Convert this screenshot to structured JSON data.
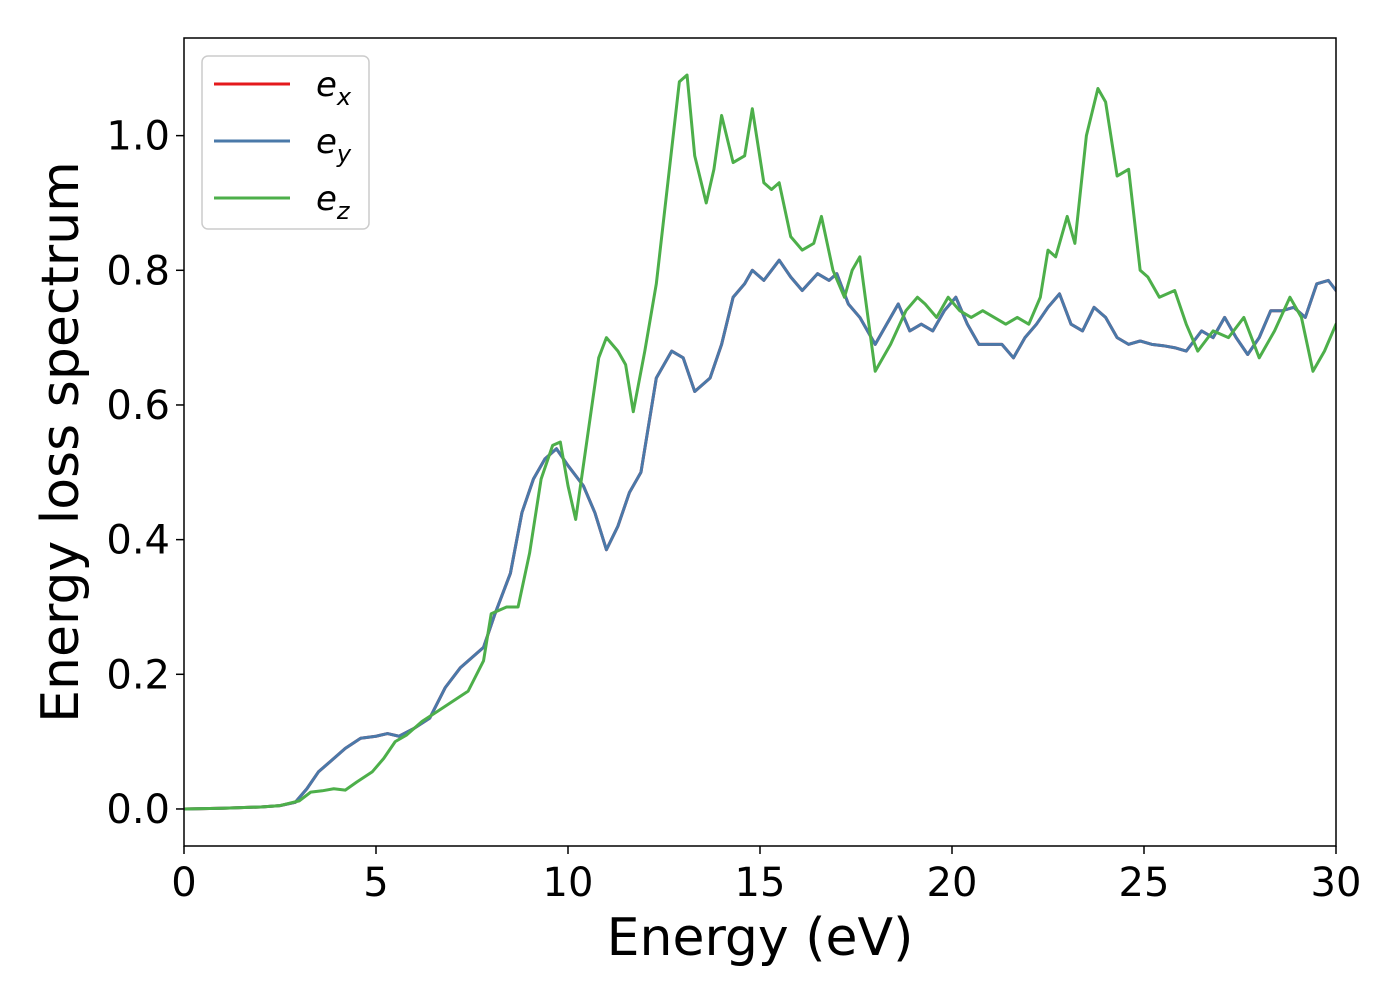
{
  "chart_data": {
    "type": "line",
    "title": "",
    "xlabel": "Energy (eV)",
    "ylabel": "Energy loss spectrum",
    "xlim": [
      0,
      30
    ],
    "ylim": [
      -0.055,
      1.145
    ],
    "xticks": [
      0,
      5,
      10,
      15,
      20,
      25,
      30
    ],
    "xtick_labels": [
      "0",
      "5",
      "10",
      "15",
      "20",
      "25",
      "30"
    ],
    "yticks": [
      0.0,
      0.2,
      0.4,
      0.6,
      0.8,
      1.0
    ],
    "ytick_labels": [
      "0.0",
      "0.2",
      "0.4",
      "0.6",
      "0.8",
      "1.0"
    ],
    "grid": false,
    "legend_position": "top-left",
    "series": [
      {
        "name": "e_x",
        "label_base": "e",
        "label_sub": "x",
        "color": "#e41a1c",
        "x": [
          0,
          1,
          2,
          2.5,
          2.9,
          3.2,
          3.5,
          3.8,
          4.2,
          4.6,
          5.0,
          5.3,
          5.6,
          6.0,
          6.4,
          6.8,
          7.2,
          7.5,
          7.8,
          8.1,
          8.5,
          8.8,
          9.1,
          9.4,
          9.7,
          10.0,
          10.4,
          10.7,
          11.0,
          11.3,
          11.6,
          11.9,
          12.3,
          12.7,
          13.0,
          13.3,
          13.7,
          14.0,
          14.3,
          14.6,
          14.8,
          15.1,
          15.3,
          15.5,
          15.8,
          16.1,
          16.5,
          16.8,
          17.0,
          17.3,
          17.6,
          18.0,
          18.3,
          18.6,
          18.9,
          19.2,
          19.5,
          19.8,
          20.1,
          20.4,
          20.7,
          21.0,
          21.3,
          21.6,
          21.9,
          22.2,
          22.5,
          22.8,
          23.1,
          23.4,
          23.7,
          24.0,
          24.3,
          24.6,
          24.9,
          25.2,
          25.5,
          25.8,
          26.1,
          26.5,
          26.8,
          27.1,
          27.4,
          27.7,
          28.0,
          28.3,
          28.6,
          28.9,
          29.2,
          29.5,
          29.8,
          30.0
        ],
        "y": [
          0,
          0.001,
          0.003,
          0.005,
          0.01,
          0.03,
          0.055,
          0.07,
          0.09,
          0.105,
          0.108,
          0.112,
          0.108,
          0.12,
          0.135,
          0.18,
          0.21,
          0.225,
          0.24,
          0.29,
          0.35,
          0.44,
          0.49,
          0.52,
          0.535,
          0.51,
          0.48,
          0.44,
          0.385,
          0.42,
          0.47,
          0.5,
          0.64,
          0.68,
          0.67,
          0.62,
          0.64,
          0.69,
          0.76,
          0.78,
          0.8,
          0.785,
          0.8,
          0.815,
          0.79,
          0.77,
          0.795,
          0.785,
          0.795,
          0.75,
          0.73,
          0.69,
          0.72,
          0.75,
          0.71,
          0.72,
          0.71,
          0.74,
          0.76,
          0.72,
          0.69,
          0.69,
          0.69,
          0.67,
          0.7,
          0.72,
          0.745,
          0.765,
          0.72,
          0.71,
          0.745,
          0.73,
          0.7,
          0.69,
          0.695,
          0.69,
          0.688,
          0.685,
          0.68,
          0.71,
          0.7,
          0.73,
          0.7,
          0.675,
          0.7,
          0.74,
          0.74,
          0.745,
          0.73,
          0.78,
          0.785,
          0.77
        ]
      },
      {
        "name": "e_y",
        "label_base": "e",
        "label_sub": "y",
        "color": "#4a79a9",
        "x": [
          0,
          1,
          2,
          2.5,
          2.9,
          3.2,
          3.5,
          3.8,
          4.2,
          4.6,
          5.0,
          5.3,
          5.6,
          6.0,
          6.4,
          6.8,
          7.2,
          7.5,
          7.8,
          8.1,
          8.5,
          8.8,
          9.1,
          9.4,
          9.7,
          10.0,
          10.4,
          10.7,
          11.0,
          11.3,
          11.6,
          11.9,
          12.3,
          12.7,
          13.0,
          13.3,
          13.7,
          14.0,
          14.3,
          14.6,
          14.8,
          15.1,
          15.3,
          15.5,
          15.8,
          16.1,
          16.5,
          16.8,
          17.0,
          17.3,
          17.6,
          18.0,
          18.3,
          18.6,
          18.9,
          19.2,
          19.5,
          19.8,
          20.1,
          20.4,
          20.7,
          21.0,
          21.3,
          21.6,
          21.9,
          22.2,
          22.5,
          22.8,
          23.1,
          23.4,
          23.7,
          24.0,
          24.3,
          24.6,
          24.9,
          25.2,
          25.5,
          25.8,
          26.1,
          26.5,
          26.8,
          27.1,
          27.4,
          27.7,
          28.0,
          28.3,
          28.6,
          28.9,
          29.2,
          29.5,
          29.8,
          30.0
        ],
        "y": [
          0,
          0.001,
          0.003,
          0.005,
          0.01,
          0.03,
          0.055,
          0.07,
          0.09,
          0.105,
          0.108,
          0.112,
          0.108,
          0.12,
          0.135,
          0.18,
          0.21,
          0.225,
          0.24,
          0.29,
          0.35,
          0.44,
          0.49,
          0.52,
          0.535,
          0.51,
          0.48,
          0.44,
          0.385,
          0.42,
          0.47,
          0.5,
          0.64,
          0.68,
          0.67,
          0.62,
          0.64,
          0.69,
          0.76,
          0.78,
          0.8,
          0.785,
          0.8,
          0.815,
          0.79,
          0.77,
          0.795,
          0.785,
          0.795,
          0.75,
          0.73,
          0.69,
          0.72,
          0.75,
          0.71,
          0.72,
          0.71,
          0.74,
          0.76,
          0.72,
          0.69,
          0.69,
          0.69,
          0.67,
          0.7,
          0.72,
          0.745,
          0.765,
          0.72,
          0.71,
          0.745,
          0.73,
          0.7,
          0.69,
          0.695,
          0.69,
          0.688,
          0.685,
          0.68,
          0.71,
          0.7,
          0.73,
          0.7,
          0.675,
          0.7,
          0.74,
          0.74,
          0.745,
          0.73,
          0.78,
          0.785,
          0.77
        ]
      },
      {
        "name": "e_z",
        "label_base": "e",
        "label_sub": "z",
        "color": "#4daf4a",
        "x": [
          0,
          1,
          2,
          2.5,
          3.0,
          3.3,
          3.6,
          3.9,
          4.2,
          4.5,
          4.9,
          5.2,
          5.5,
          5.8,
          6.2,
          6.6,
          7.0,
          7.4,
          7.8,
          8.0,
          8.4,
          8.7,
          9.0,
          9.3,
          9.6,
          9.8,
          10.0,
          10.2,
          10.5,
          10.8,
          11.0,
          11.3,
          11.5,
          11.7,
          12.0,
          12.3,
          12.6,
          12.9,
          13.1,
          13.3,
          13.6,
          13.8,
          14.0,
          14.3,
          14.6,
          14.8,
          15.1,
          15.3,
          15.5,
          15.8,
          16.1,
          16.4,
          16.6,
          16.9,
          17.2,
          17.4,
          17.6,
          18.0,
          18.4,
          18.8,
          19.1,
          19.3,
          19.6,
          19.9,
          20.2,
          20.5,
          20.8,
          21.1,
          21.4,
          21.7,
          22.0,
          22.3,
          22.5,
          22.7,
          23.0,
          23.2,
          23.5,
          23.8,
          24.0,
          24.3,
          24.6,
          24.9,
          25.1,
          25.4,
          25.8,
          26.1,
          26.4,
          26.8,
          27.2,
          27.6,
          28.0,
          28.4,
          28.8,
          29.1,
          29.4,
          29.7,
          30.0
        ],
        "y": [
          0,
          0.001,
          0.003,
          0.005,
          0.012,
          0.025,
          0.027,
          0.03,
          0.028,
          0.04,
          0.055,
          0.075,
          0.1,
          0.11,
          0.13,
          0.145,
          0.16,
          0.175,
          0.22,
          0.29,
          0.3,
          0.3,
          0.38,
          0.49,
          0.54,
          0.545,
          0.48,
          0.43,
          0.55,
          0.67,
          0.7,
          0.68,
          0.66,
          0.59,
          0.68,
          0.78,
          0.93,
          1.08,
          1.09,
          0.97,
          0.9,
          0.95,
          1.03,
          0.96,
          0.97,
          1.04,
          0.93,
          0.92,
          0.93,
          0.85,
          0.83,
          0.84,
          0.88,
          0.8,
          0.76,
          0.8,
          0.82,
          0.65,
          0.69,
          0.74,
          0.76,
          0.75,
          0.73,
          0.76,
          0.74,
          0.73,
          0.74,
          0.73,
          0.72,
          0.73,
          0.72,
          0.76,
          0.83,
          0.82,
          0.88,
          0.84,
          1.0,
          1.07,
          1.05,
          0.94,
          0.95,
          0.8,
          0.79,
          0.76,
          0.77,
          0.72,
          0.68,
          0.71,
          0.7,
          0.73,
          0.67,
          0.71,
          0.76,
          0.73,
          0.65,
          0.68,
          0.72
        ]
      }
    ]
  }
}
